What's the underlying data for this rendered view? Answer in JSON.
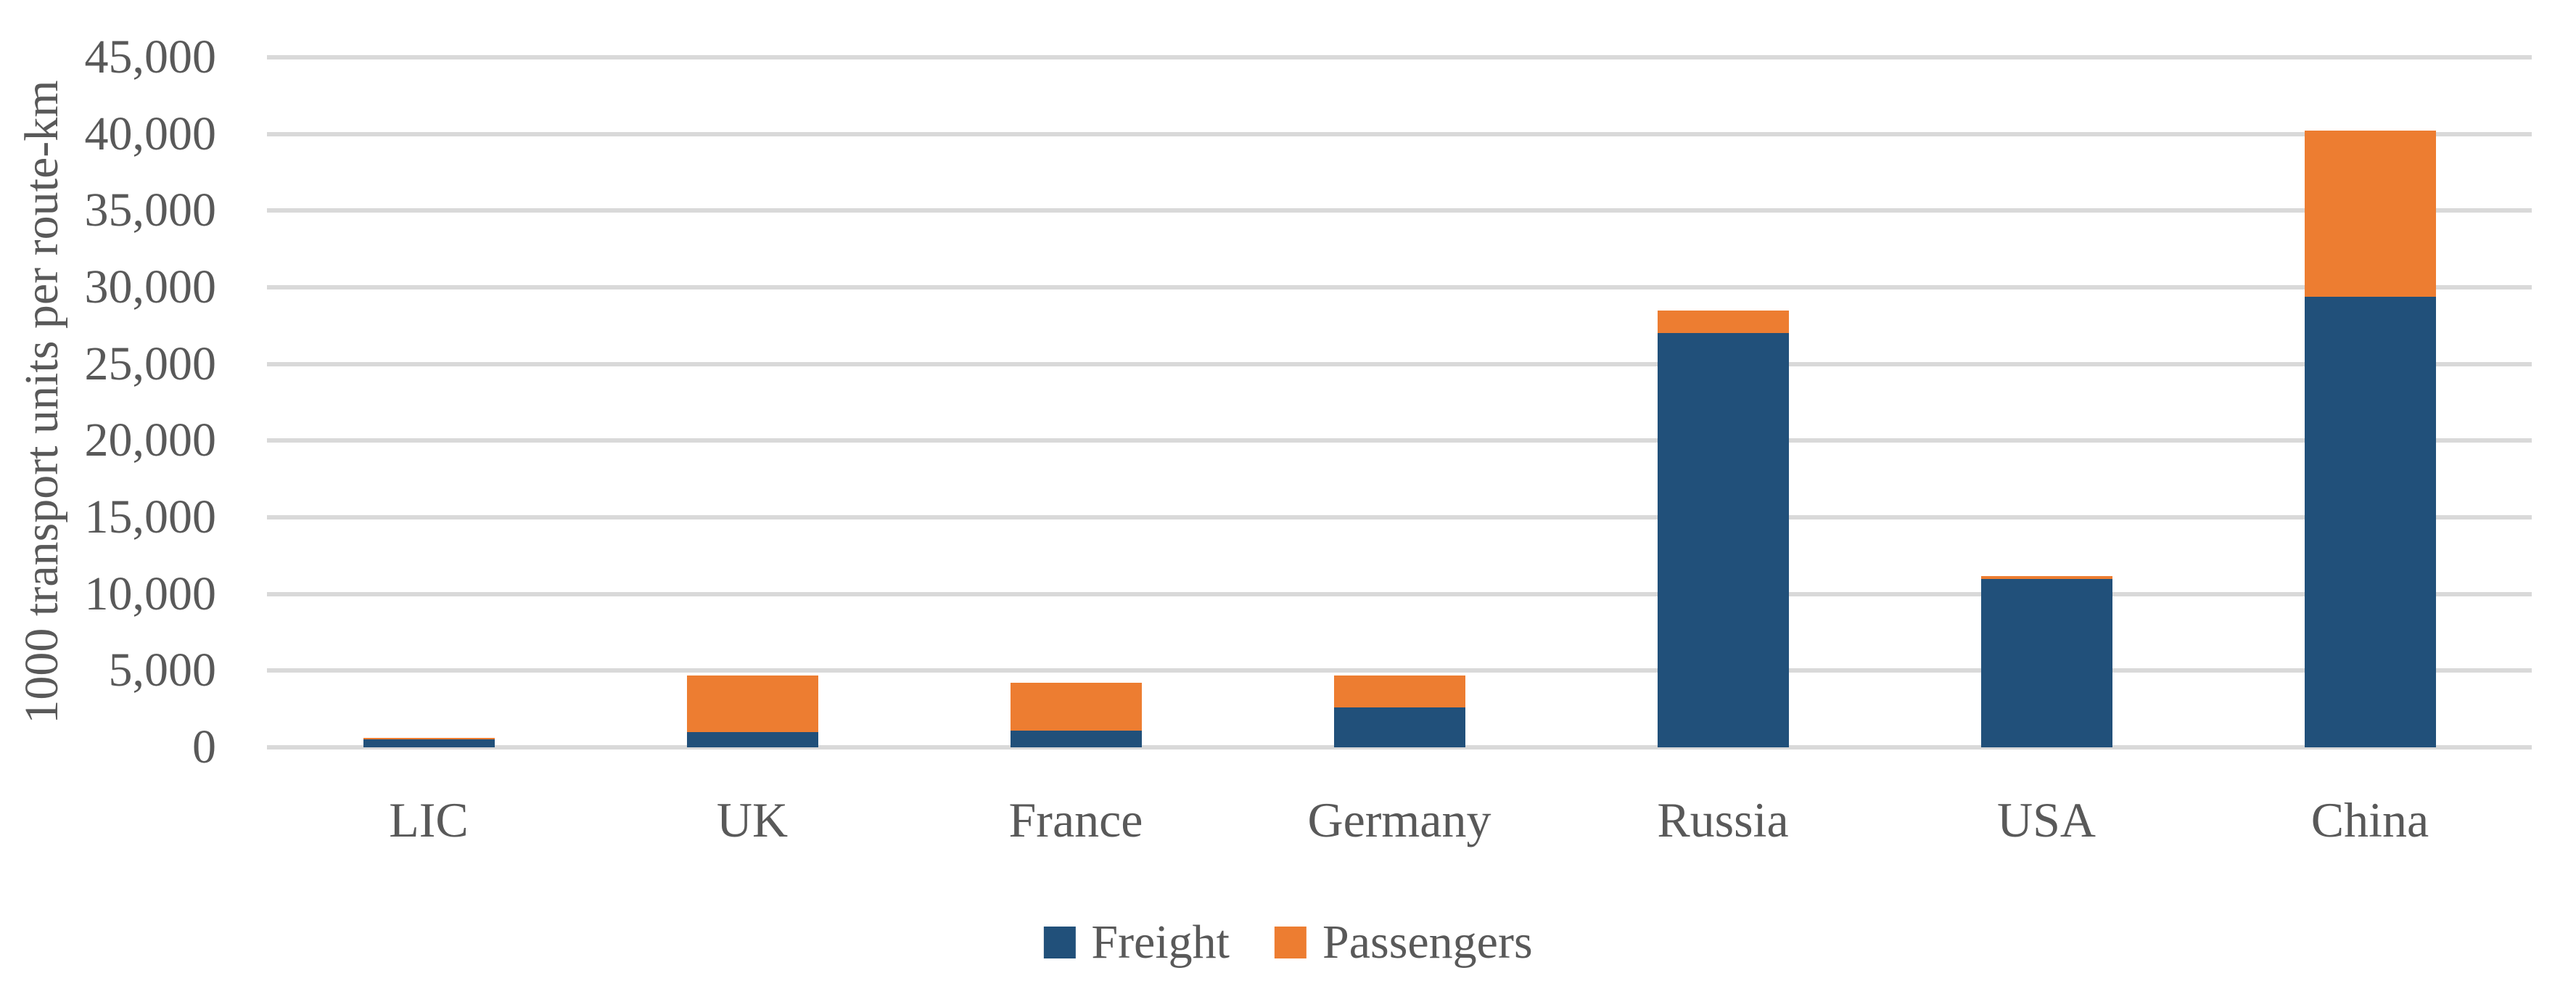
{
  "chart_data": {
    "type": "bar",
    "stacked": true,
    "title": "",
    "xlabel": "",
    "ylabel": "1000 transport units per route-km",
    "categories": [
      "LIC",
      "UK",
      "France",
      "Germany",
      "Russia",
      "USA",
      "China"
    ],
    "series": [
      {
        "name": "Freight",
        "color": "#21507A",
        "values": [
          500,
          1000,
          1100,
          2600,
          27000,
          11000,
          29400
        ]
      },
      {
        "name": "Passengers",
        "color": "#ED7D31",
        "values": [
          120,
          3700,
          3100,
          2100,
          1500,
          150,
          10800
        ]
      }
    ],
    "ylim": [
      0,
      45000
    ],
    "ytick_step": 5000,
    "ytick_labels": [
      "0",
      "5,000",
      "10,000",
      "15,000",
      "20,000",
      "25,000",
      "30,000",
      "35,000",
      "40,000",
      "45,000"
    ],
    "grid": true,
    "gridline_color": "#D9D9D9",
    "text_color": "#595959",
    "legend_position": "bottom",
    "legend_items": [
      {
        "label": "Freight"
      },
      {
        "label": "Passengers"
      }
    ]
  }
}
